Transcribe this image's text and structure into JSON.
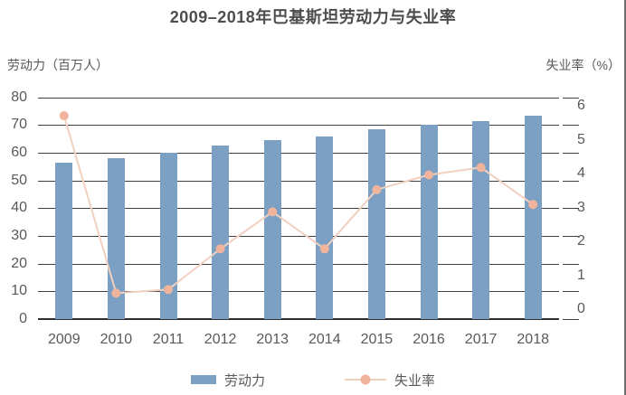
{
  "page": {
    "title": "2009–2018年巴基斯坦劳动力与失业率"
  },
  "axes": {
    "left_label": "劳动力（百万人）",
    "right_label": "失业率（%）",
    "left_ticks": [
      0,
      10,
      20,
      30,
      40,
      50,
      60,
      70,
      80
    ],
    "right_ticks": [
      0,
      1,
      2,
      3,
      4,
      5,
      6
    ]
  },
  "legend": {
    "items": [
      {
        "label": "劳动力",
        "marker": "bar-swatch"
      },
      {
        "label": "失业率",
        "marker": "line-dot-swatch"
      }
    ]
  },
  "colors": {
    "bar": "#7CA0C3",
    "line": "#F1D0C0",
    "dot": "#F0B49C",
    "grid": "#3F3F3F",
    "text": "#595959",
    "title": "#4D4D4D"
  },
  "chart_data": {
    "type": "bar",
    "title": "2009–2018年巴基斯坦劳动力与失业率",
    "categories": [
      "2009",
      "2010",
      "2011",
      "2012",
      "2013",
      "2014",
      "2015",
      "2016",
      "2017",
      "2018"
    ],
    "series": [
      {
        "name": "劳动力",
        "type": "bar",
        "axis": "left",
        "unit": "百万人",
        "values": [
          56.5,
          58,
          60,
          62.5,
          64.5,
          66,
          68.5,
          70,
          71.5,
          73.5
        ]
      },
      {
        "name": "失业率",
        "type": "line",
        "axis": "right",
        "unit": "%",
        "values": [
          5.5,
          0.7,
          0.8,
          1.9,
          2.9,
          1.9,
          3.5,
          3.9,
          4.1,
          3.1
        ]
      }
    ],
    "xlabel": "",
    "ylabel_left": "劳动力（百万人）",
    "ylabel_right": "失业率（%）",
    "ylim_left": [
      0,
      80
    ],
    "ylim_right": [
      0,
      6
    ],
    "grid": true,
    "legend_position": "bottom"
  }
}
